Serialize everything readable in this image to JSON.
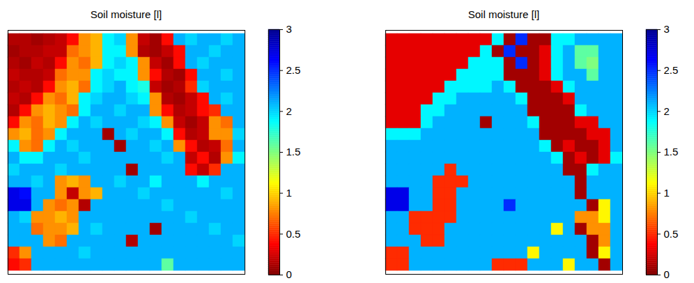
{
  "chart_data": [
    {
      "type": "heatmap",
      "title": "Soil moisture [l]",
      "tick_labels": false,
      "colorbar_range": [
        0,
        3
      ],
      "colorbar_ticks": [
        0,
        0.5,
        1,
        1.5,
        2,
        2.5,
        3
      ],
      "cells": [
        [
          0.15,
          0.15,
          0.1,
          0.15,
          0.2,
          0.4,
          0.8,
          0.9,
          1.9,
          2.0,
          0.8,
          0.2,
          0.1,
          0.4,
          2.1,
          2.0,
          2.1,
          2.1,
          2.0,
          2.1
        ],
        [
          0.1,
          0.15,
          0.15,
          0.2,
          0.2,
          0.7,
          0.8,
          0.9,
          1.9,
          1.9,
          0.8,
          0.15,
          0.1,
          0.2,
          0.4,
          2.1,
          2.1,
          2.0,
          2.1,
          2.1
        ],
        [
          0.15,
          0.1,
          0.2,
          0.15,
          0.4,
          0.8,
          0.7,
          0.9,
          1.9,
          2.0,
          1.9,
          0.8,
          0.2,
          0.1,
          0.4,
          2.1,
          2.0,
          2.1,
          2.1,
          2.1
        ],
        [
          0.2,
          0.15,
          0.15,
          0.2,
          0.7,
          0.8,
          0.8,
          1.9,
          2.0,
          1.9,
          1.9,
          0.8,
          0.4,
          0.15,
          0.1,
          0.4,
          2.1,
          2.1,
          2.0,
          2.1
        ],
        [
          0.15,
          0.2,
          0.15,
          0.4,
          0.8,
          0.9,
          0.7,
          1.9,
          2.0,
          2.1,
          1.9,
          1.8,
          0.2,
          0.1,
          0.15,
          0.5,
          2.0,
          2.1,
          2.1,
          2.1
        ],
        [
          0.2,
          0.15,
          0.4,
          0.8,
          0.7,
          0.9,
          1.9,
          2.0,
          2.1,
          2.1,
          2.0,
          1.9,
          0.8,
          0.15,
          0.1,
          0.2,
          0.4,
          2.1,
          2.0,
          2.1
        ],
        [
          0.15,
          0.4,
          0.8,
          0.9,
          0.8,
          0.7,
          1.9,
          2.1,
          2.1,
          2.0,
          2.1,
          2.1,
          0.8,
          0.4,
          0.15,
          0.2,
          0.4,
          0.5,
          2.1,
          2.1
        ],
        [
          0.4,
          0.8,
          0.7,
          0.9,
          0.8,
          1.9,
          2.1,
          2.0,
          2.1,
          2.1,
          2.1,
          2.0,
          1.9,
          0.8,
          0.2,
          0.1,
          0.2,
          0.8,
          0.7,
          2.1
        ],
        [
          0.8,
          0.9,
          0.7,
          0.8,
          1.9,
          2.1,
          2.1,
          2.1,
          0.1,
          2.1,
          2.0,
          2.1,
          2.1,
          1.9,
          0.4,
          0.15,
          0.2,
          0.8,
          0.8,
          2.0
        ],
        [
          1.9,
          0.8,
          0.7,
          1.9,
          2.1,
          2.0,
          2.1,
          2.1,
          2.1,
          0.1,
          2.1,
          2.1,
          2.0,
          2.1,
          0.8,
          0.4,
          0.15,
          0.2,
          0.7,
          2.1
        ],
        [
          2.1,
          1.9,
          1.9,
          2.1,
          2.1,
          2.1,
          2.0,
          2.1,
          2.1,
          2.1,
          2.1,
          2.1,
          2.1,
          2.0,
          2.1,
          0.2,
          0.4,
          0.15,
          0.8,
          1.9
        ],
        [
          2.0,
          2.1,
          2.1,
          2.1,
          2.0,
          2.1,
          2.1,
          2.1,
          2.1,
          2.1,
          0.1,
          2.1,
          2.1,
          2.1,
          2.1,
          0.4,
          0.2,
          0.5,
          2.1,
          2.1
        ],
        [
          2.1,
          2.1,
          2.0,
          2.1,
          0.8,
          0.9,
          0.8,
          2.1,
          2.1,
          2.0,
          2.1,
          2.1,
          1.9,
          2.1,
          2.1,
          2.1,
          1.9,
          2.1,
          2.1,
          2.1
        ],
        [
          2.7,
          2.6,
          2.1,
          2.1,
          0.8,
          0.2,
          0.8,
          0.9,
          2.1,
          2.1,
          2.1,
          2.0,
          2.1,
          2.1,
          2.1,
          2.1,
          2.1,
          2.1,
          2.0,
          2.1
        ],
        [
          2.7,
          2.7,
          2.1,
          0.8,
          0.7,
          0.8,
          0.15,
          2.1,
          2.1,
          2.1,
          2.1,
          2.1,
          2.1,
          2.0,
          2.1,
          2.1,
          2.1,
          2.1,
          2.1,
          2.1
        ],
        [
          2.1,
          2.0,
          0.8,
          0.8,
          0.9,
          0.8,
          2.1,
          2.1,
          2.1,
          2.1,
          2.1,
          2.1,
          2.1,
          2.1,
          2.1,
          2.0,
          2.1,
          2.1,
          2.1,
          2.1
        ],
        [
          2.1,
          2.1,
          0.7,
          0.8,
          0.8,
          0.9,
          2.1,
          2.0,
          2.1,
          2.1,
          2.1,
          2.1,
          0.1,
          2.1,
          2.1,
          2.1,
          2.1,
          2.0,
          2.1,
          2.1
        ],
        [
          2.1,
          2.1,
          2.1,
          0.8,
          0.7,
          2.1,
          2.1,
          2.1,
          2.1,
          2.1,
          0.15,
          2.1,
          2.1,
          2.1,
          2.1,
          2.1,
          2.1,
          2.1,
          2.1,
          2.0
        ],
        [
          0.5,
          0.8,
          2.1,
          2.1,
          2.1,
          2.1,
          2.0,
          2.1,
          2.1,
          2.1,
          2.1,
          2.1,
          2.1,
          2.1,
          2.1,
          2.1,
          2.1,
          2.1,
          2.1,
          2.1
        ],
        [
          0.4,
          0.5,
          2.1,
          2.1,
          2.1,
          2.1,
          2.1,
          2.1,
          2.1,
          2.1,
          2.1,
          2.1,
          2.1,
          1.6,
          2.1,
          2.1,
          2.1,
          2.1,
          2.1,
          2.1
        ]
      ]
    },
    {
      "type": "heatmap",
      "title": "Soil moisture [l]",
      "tick_labels": false,
      "colorbar_range": [
        0,
        3
      ],
      "colorbar_ticks": [
        0,
        0.5,
        1,
        1.5,
        2,
        2.5,
        3
      ],
      "cells": [
        [
          0.3,
          0.3,
          0.3,
          0.3,
          0.3,
          0.3,
          0.3,
          0.3,
          0.3,
          1.9,
          0.1,
          2.5,
          0.1,
          0.1,
          1.9,
          1.9,
          2.1,
          2.1,
          2.1,
          2.1
        ],
        [
          0.3,
          0.3,
          0.3,
          0.3,
          0.3,
          0.3,
          0.3,
          0.3,
          1.9,
          0.1,
          2.5,
          0.1,
          0.1,
          0.3,
          1.9,
          2.1,
          1.6,
          1.6,
          2.1,
          2.1
        ],
        [
          0.3,
          0.3,
          0.3,
          0.3,
          0.3,
          0.3,
          0.3,
          1.9,
          1.9,
          1.9,
          0.1,
          2.5,
          0.1,
          0.3,
          1.9,
          2.1,
          1.6,
          1.5,
          2.1,
          2.1
        ],
        [
          0.3,
          0.3,
          0.3,
          0.3,
          0.3,
          0.3,
          1.9,
          1.9,
          1.9,
          1.9,
          0.1,
          0.1,
          0.1,
          0.3,
          1.9,
          2.1,
          2.1,
          1.6,
          2.1,
          2.1
        ],
        [
          0.3,
          0.3,
          0.3,
          0.3,
          0.3,
          1.9,
          1.9,
          1.9,
          1.9,
          2.1,
          1.9,
          0.1,
          0.1,
          0.1,
          0.3,
          1.9,
          2.1,
          2.1,
          2.1,
          2.1
        ],
        [
          0.3,
          0.3,
          0.3,
          0.3,
          1.9,
          1.9,
          2.1,
          2.1,
          2.1,
          2.1,
          2.1,
          1.9,
          0.1,
          0.1,
          0.1,
          0.3,
          2.1,
          2.1,
          2.1,
          2.1
        ],
        [
          0.3,
          0.3,
          0.3,
          1.9,
          1.9,
          2.1,
          2.1,
          2.1,
          2.1,
          2.1,
          2.1,
          2.1,
          0.1,
          0.1,
          0.1,
          0.1,
          1.9,
          2.1,
          2.1,
          2.1
        ],
        [
          0.3,
          0.3,
          0.3,
          1.9,
          2.1,
          2.1,
          2.1,
          2.1,
          0.1,
          2.1,
          2.1,
          2.1,
          1.9,
          0.1,
          0.1,
          0.1,
          0.3,
          0.3,
          2.1,
          2.1
        ],
        [
          1.9,
          1.9,
          1.9,
          2.1,
          2.1,
          2.1,
          2.1,
          2.1,
          2.1,
          2.1,
          2.1,
          2.1,
          2.1,
          0.1,
          0.1,
          0.1,
          0.1,
          0.3,
          0.3,
          2.1
        ],
        [
          2.1,
          2.1,
          2.1,
          2.1,
          2.1,
          2.1,
          2.1,
          2.1,
          2.1,
          2.1,
          2.1,
          2.1,
          2.1,
          1.9,
          0.1,
          0.3,
          0.1,
          0.1,
          0.3,
          2.1
        ],
        [
          2.1,
          2.1,
          2.1,
          2.1,
          2.1,
          2.1,
          2.1,
          2.1,
          2.1,
          2.1,
          2.1,
          2.1,
          2.1,
          2.1,
          1.9,
          0.1,
          0.3,
          0.1,
          0.3,
          1.9
        ],
        [
          2.1,
          2.1,
          2.1,
          2.1,
          2.1,
          0.5,
          2.1,
          2.1,
          2.1,
          2.1,
          2.1,
          2.1,
          2.1,
          2.1,
          2.1,
          0.1,
          0.1,
          1.9,
          2.1,
          2.1
        ],
        [
          2.1,
          2.1,
          2.1,
          2.1,
          0.5,
          0.5,
          0.5,
          2.1,
          2.1,
          2.1,
          2.1,
          2.1,
          2.1,
          2.1,
          2.1,
          2.1,
          0.1,
          2.1,
          2.1,
          2.1
        ],
        [
          2.7,
          2.7,
          2.1,
          2.1,
          0.5,
          0.5,
          2.1,
          2.1,
          2.1,
          2.1,
          2.1,
          2.1,
          2.1,
          2.1,
          2.1,
          2.1,
          0.1,
          2.1,
          2.1,
          2.1
        ],
        [
          2.7,
          2.7,
          2.1,
          2.1,
          0.5,
          0.5,
          2.1,
          2.1,
          2.1,
          2.1,
          2.5,
          2.1,
          2.1,
          2.1,
          2.1,
          2.1,
          2.1,
          0.1,
          1.1,
          2.1
        ],
        [
          2.1,
          2.1,
          0.5,
          0.5,
          0.5,
          0.5,
          2.1,
          2.1,
          2.1,
          2.1,
          2.1,
          2.1,
          2.1,
          2.1,
          2.1,
          2.1,
          0.8,
          0.8,
          1.1,
          2.1
        ],
        [
          2.1,
          2.1,
          0.5,
          0.5,
          0.5,
          2.1,
          2.1,
          2.1,
          2.1,
          2.1,
          2.1,
          2.1,
          2.1,
          2.1,
          1.1,
          2.1,
          0.1,
          0.8,
          0.8,
          2.1
        ],
        [
          2.1,
          2.1,
          2.1,
          0.5,
          0.5,
          2.1,
          2.1,
          2.1,
          2.1,
          2.1,
          2.1,
          2.1,
          2.1,
          2.1,
          2.1,
          2.1,
          2.1,
          0.1,
          0.8,
          2.1
        ],
        [
          0.5,
          0.5,
          2.1,
          2.1,
          2.1,
          2.1,
          2.1,
          2.1,
          2.1,
          2.1,
          2.1,
          2.1,
          1.1,
          2.1,
          2.1,
          2.1,
          2.1,
          0.1,
          1.1,
          2.1
        ],
        [
          0.5,
          0.5,
          2.1,
          2.1,
          2.1,
          2.1,
          2.1,
          2.1,
          2.1,
          0.5,
          0.5,
          0.5,
          2.1,
          2.1,
          2.1,
          1.1,
          2.1,
          2.1,
          0.1,
          2.1
        ]
      ]
    }
  ]
}
